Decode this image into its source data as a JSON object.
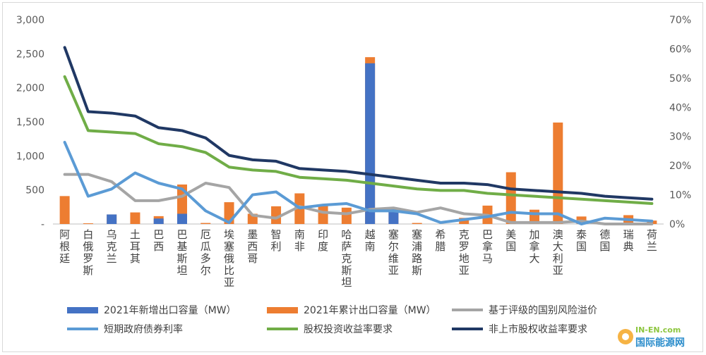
{
  "chart_data": {
    "type": "bar",
    "categories": [
      "阿根廷",
      "白俄罗斯",
      "乌克兰",
      "土耳其",
      "巴西",
      "巴基斯坦",
      "厄瓜多尔",
      "埃塞俄比亚",
      "墨西哥",
      "智利",
      "南非",
      "印度",
      "哈萨克斯坦",
      "越南",
      "塞尔维亚",
      "塞浦路斯",
      "希腊",
      "克罗地亚",
      "巴拿马",
      "美国",
      "加拿大",
      "澳大利亚",
      "泰国",
      "德国",
      "瑞典",
      "荷兰"
    ],
    "y_left": {
      "ticks": [
        "-",
        "500",
        "1,000",
        "1,500",
        "2,000",
        "2,500",
        "3,000"
      ],
      "lim": [
        0,
        3000
      ]
    },
    "y_right": {
      "ticks": [
        "0%",
        "10%",
        "20%",
        "30%",
        "40%",
        "50%",
        "60%",
        "70%"
      ],
      "lim": [
        0,
        70
      ]
    },
    "series": [
      {
        "name": "2021年新增出口容量（MW）",
        "kind": "bar",
        "axis": "left",
        "color": "#4472c4",
        "values": [
          0,
          0,
          140,
          0,
          80,
          150,
          0,
          0,
          0,
          0,
          0,
          0,
          0,
          2360,
          240,
          0,
          0,
          0,
          0,
          0,
          0,
          0,
          0,
          0,
          0,
          0
        ]
      },
      {
        "name": "2021年累计出口容量（MW）",
        "kind": "bar",
        "axis": "left",
        "color": "#ed7d31",
        "values": [
          410,
          10,
          140,
          170,
          115,
          580,
          15,
          320,
          150,
          260,
          450,
          270,
          240,
          2450,
          240,
          15,
          0,
          90,
          270,
          760,
          210,
          1490,
          110,
          0,
          130,
          50
        ]
      },
      {
        "name": "基于评级的国别风险溢价",
        "kind": "line",
        "axis": "right",
        "color": "#a5a5a5",
        "values": [
          17,
          17,
          14.5,
          8,
          8,
          9.5,
          14,
          12.5,
          3,
          2,
          6,
          4,
          3.5,
          5,
          5.5,
          4,
          5.5,
          3.5,
          3,
          0.5,
          0.5,
          0.5,
          1,
          0,
          0,
          0
        ]
      },
      {
        "name": "短期政府债券利率",
        "kind": "line",
        "axis": "right",
        "color": "#5b9bd5",
        "values": [
          28,
          9.5,
          12,
          17.5,
          14,
          12,
          4.5,
          0.5,
          10,
          11,
          5.5,
          6.5,
          7,
          4.5,
          4.5,
          3.5,
          0.5,
          1.5,
          2.5,
          4,
          3.5,
          3.5,
          0,
          2,
          1.5,
          1
        ]
      },
      {
        "name": "股权投资收益率要求",
        "kind": "line",
        "axis": "right",
        "color": "#70ad47",
        "values": [
          50.5,
          32,
          31.5,
          31,
          27.5,
          26.5,
          24.5,
          19.5,
          18.5,
          18,
          16,
          15.5,
          15,
          14,
          13,
          12,
          11.5,
          11.5,
          10.5,
          10,
          9.5,
          9,
          8.5,
          8,
          7.5,
          7
        ]
      },
      {
        "name": "非上市股权收益率要求",
        "kind": "line",
        "axis": "right",
        "color": "#203864",
        "values": [
          60.5,
          38.5,
          38,
          37,
          33,
          32,
          29.5,
          23.5,
          22,
          21.5,
          19,
          18.5,
          18,
          17,
          16,
          15,
          14,
          14,
          13.5,
          12,
          11.5,
          11,
          10.5,
          9.5,
          9,
          8.5
        ]
      }
    ]
  },
  "watermark": {
    "domain": "IN-EN.com",
    "name": "国际能源网"
  }
}
